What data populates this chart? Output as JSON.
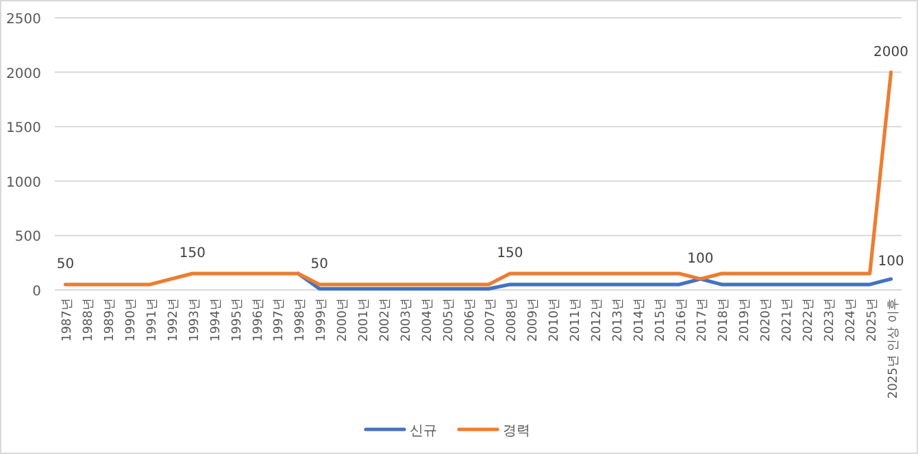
{
  "chart_data": {
    "type": "line",
    "categories": [
      "1987년",
      "1988년",
      "1989년",
      "1990년",
      "1991년",
      "1992년",
      "1993년",
      "1994년",
      "1995년",
      "1996년",
      "1997년",
      "1998년",
      "1999년",
      "2000년",
      "2001년",
      "2002년",
      "2003년",
      "2004년",
      "2005년",
      "2006년",
      "2007년",
      "2008년",
      "2009년",
      "2010년",
      "2011년",
      "2012년",
      "2013년",
      "2014년",
      "2015년",
      "2016년",
      "2017년",
      "2018년",
      "2019년",
      "2020년",
      "2021년",
      "2022년",
      "2023년",
      "2024년",
      "2025년",
      "2025년 인상 이후"
    ],
    "series": [
      {
        "name": "신규",
        "color": "#4472c4",
        "values": [
          null,
          null,
          null,
          null,
          null,
          null,
          null,
          null,
          null,
          null,
          null,
          150,
          10,
          10,
          10,
          10,
          10,
          10,
          10,
          10,
          10,
          50,
          50,
          50,
          50,
          50,
          50,
          50,
          50,
          50,
          100,
          50,
          50,
          50,
          50,
          50,
          50,
          50,
          50,
          100
        ]
      },
      {
        "name": "경력",
        "color": "#ed7d31",
        "values": [
          50,
          50,
          50,
          50,
          50,
          100,
          150,
          150,
          150,
          150,
          150,
          150,
          50,
          50,
          50,
          50,
          50,
          50,
          50,
          50,
          50,
          150,
          150,
          150,
          150,
          150,
          150,
          150,
          150,
          150,
          100,
          150,
          150,
          150,
          150,
          150,
          150,
          150,
          150,
          2000
        ]
      }
    ],
    "ylim": [
      0,
      2500
    ],
    "yticks": [
      0,
      500,
      1000,
      1500,
      2000,
      2500
    ],
    "grid": "y",
    "legend": "bottom",
    "annotations": [
      {
        "text": "50",
        "x": "1987년",
        "y": 50
      },
      {
        "text": "150",
        "x": "1993년",
        "y": 150
      },
      {
        "text": "50",
        "x": "1999년",
        "y": 50
      },
      {
        "text": "150",
        "x": "2008년",
        "y": 150
      },
      {
        "text": "100",
        "x": "2017년",
        "y": 100
      },
      {
        "text": "2000",
        "x": "2025년 인상 이후",
        "y": 2000
      },
      {
        "text": "100",
        "x": "2025년 인상 이후",
        "y": 100
      }
    ]
  }
}
